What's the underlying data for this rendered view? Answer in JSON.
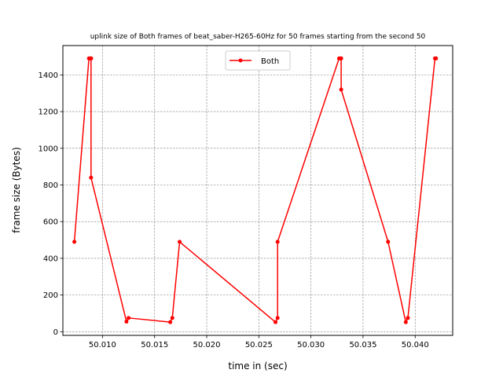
{
  "chart_data": {
    "type": "line",
    "title": "uplink size of Both frames of beat_saber-H265-60Hz for 50 frames starting from the second 50",
    "xlabel": "time in (sec)",
    "ylabel": "frame size (Bytes)",
    "xlim": [
      50.0062,
      50.0436
    ],
    "ylim": [
      -20,
      1560
    ],
    "xticks": [
      50.01,
      50.015,
      50.02,
      50.025,
      50.03,
      50.035,
      50.04
    ],
    "xtick_labels": [
      "50.010",
      "50.015",
      "50.020",
      "50.025",
      "50.030",
      "50.035",
      "50.040"
    ],
    "yticks": [
      0,
      200,
      400,
      600,
      800,
      1000,
      1200,
      1400
    ],
    "ytick_labels": [
      "0",
      "200",
      "400",
      "600",
      "800",
      "1000",
      "1200",
      "1400"
    ],
    "grid": true,
    "legend_position": "top-center",
    "series": [
      {
        "name": "Both",
        "color": "#ff0000",
        "marker": "circle",
        "x": [
          50.0073,
          50.0087,
          50.0088,
          50.0089,
          50.0089,
          50.0089,
          50.0089,
          50.0089,
          50.0123,
          50.0125,
          50.0165,
          50.0167,
          50.0174,
          50.0266,
          50.0268,
          50.0268,
          50.0327,
          50.0328,
          50.0329,
          50.0329,
          50.0329,
          50.0374,
          50.0391,
          50.0393,
          50.0419,
          50.042
        ],
        "y": [
          490,
          1490,
          1490,
          1490,
          1490,
          1490,
          1490,
          840,
          55,
          75,
          52,
          75,
          490,
          52,
          75,
          490,
          1490,
          1490,
          1490,
          1490,
          1320,
          490,
          52,
          75,
          1490,
          1490
        ]
      }
    ]
  }
}
